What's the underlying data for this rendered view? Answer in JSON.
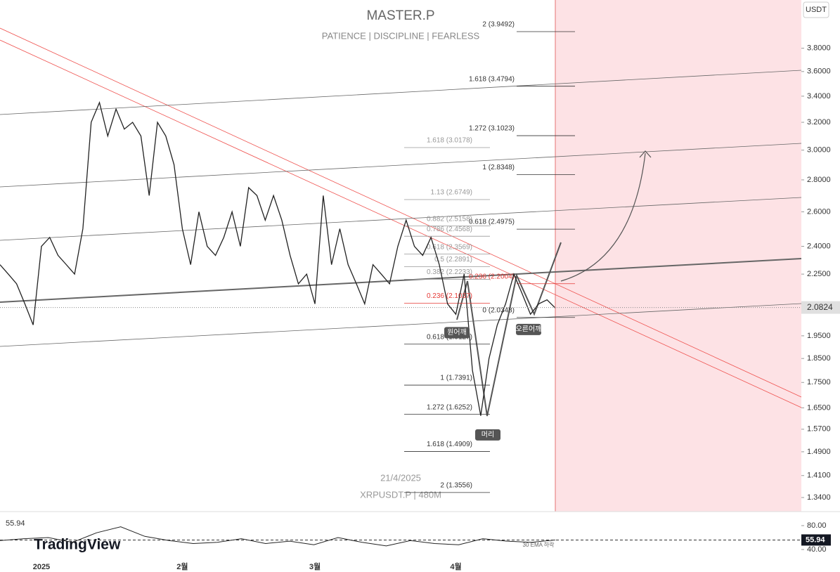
{
  "chart_data": [
    {
      "type": "line",
      "title": "MASTER.P",
      "subtitle": "PATIENCE | DISCIPLINE | FEARLESS",
      "currency": "USDT",
      "log_scale": true,
      "categories": [
        null,
        null,
        null,
        null,
        null,
        "2025",
        null,
        null,
        null,
        null,
        null,
        null,
        null,
        null,
        null,
        null,
        null,
        null,
        null,
        null,
        null,
        null,
        "2월",
        null,
        null,
        null,
        null,
        null,
        null,
        null,
        null,
        null,
        null,
        null,
        null,
        null,
        null,
        null,
        "3월",
        null,
        null,
        null,
        null,
        null,
        null,
        null,
        null,
        null,
        null,
        null,
        null,
        null,
        null,
        null,
        null,
        "4월",
        null,
        null,
        null,
        null,
        null,
        null,
        null,
        null,
        null,
        null,
        null,
        null
      ],
      "series": [
        {
          "name": "XRPUSDT.P",
          "color": "#222222",
          "values": [
            2.3,
            2.25,
            2.2,
            2.1,
            2.0,
            2.4,
            2.45,
            2.35,
            2.3,
            2.25,
            2.5,
            3.2,
            3.35,
            3.1,
            3.3,
            3.15,
            3.2,
            3.1,
            2.7,
            3.2,
            3.1,
            2.9,
            2.5,
            2.3,
            2.6,
            2.4,
            2.35,
            2.45,
            2.6,
            2.4,
            2.75,
            2.7,
            2.55,
            2.7,
            2.55,
            2.35,
            2.2,
            2.25,
            2.1,
            2.7,
            2.3,
            2.5,
            2.3,
            2.2,
            2.1,
            2.3,
            2.25,
            2.2,
            2.4,
            2.55,
            2.4,
            2.35,
            2.45,
            2.3,
            2.1,
            2.05,
            2.25,
            1.8,
            1.62,
            1.85,
            2.0,
            2.1,
            2.25,
            2.15,
            2.05,
            2.1,
            2.12,
            2.08
          ]
        }
      ],
      "last_price": 2.0824,
      "ylim": [
        1.297,
        4.25
      ],
      "yticks": [
        {
          "value": 1.34,
          "label": "1.3400"
        },
        {
          "value": 1.41,
          "label": "1.4100"
        },
        {
          "value": 1.49,
          "label": "1.4900"
        },
        {
          "value": 1.57,
          "label": "1.5700"
        },
        {
          "value": 1.65,
          "label": "1.6500"
        },
        {
          "value": 1.75,
          "label": "1.7500"
        },
        {
          "value": 1.85,
          "label": "1.8500"
        },
        {
          "value": 1.95,
          "label": "1.9500"
        },
        {
          "value": 2.25,
          "label": "2.2500"
        },
        {
          "value": 2.4,
          "label": "2.4000"
        },
        {
          "value": 2.6,
          "label": "2.6000"
        },
        {
          "value": 2.8,
          "label": "2.8000"
        },
        {
          "value": 3.0,
          "label": "3.0000"
        },
        {
          "value": 3.2,
          "label": "3.2000"
        },
        {
          "value": 3.4,
          "label": "3.4000"
        },
        {
          "value": 3.6,
          "label": "3.6000"
        },
        {
          "value": 3.8,
          "label": "3.8000"
        }
      ],
      "fib_right": [
        {
          "text": "2 (3.9492)",
          "value": 3.9492
        },
        {
          "text": "1.618 (3.4794)",
          "value": 3.4794
        },
        {
          "text": "1.272 (3.1023)",
          "value": 3.1023
        },
        {
          "text": "1 (2.8348)",
          "value": 2.8348
        },
        {
          "text": "0.618 (2.4975)",
          "value": 2.4975
        },
        {
          "text": "0.236 (2.2004)",
          "value": 2.2004,
          "color": "#e53935"
        },
        {
          "text": "0 (2.0348)",
          "value": 2.0348
        }
      ],
      "fib_left": [
        {
          "text": "1.618 (3.0178)",
          "value": 3.0178,
          "color": "#999999"
        },
        {
          "text": "1.13 (2.6749)",
          "value": 2.6749,
          "color": "#999999"
        },
        {
          "text": "0.882 (2.5158)",
          "value": 2.5158,
          "color": "#999999"
        },
        {
          "text": "0.786 (2.4568)",
          "value": 2.4568,
          "color": "#999999"
        },
        {
          "text": "0.618 (2.3569)",
          "value": 2.3569,
          "color": "#999999"
        },
        {
          "text": "0.5 (2.2891)",
          "value": 2.2891,
          "color": "#999999"
        },
        {
          "text": "0.382 (2.2233)",
          "value": 2.2233,
          "color": "#999999"
        },
        {
          "text": "0.236 (2.1037)",
          "value": 2.1037,
          "color": "#e53935"
        },
        {
          "text": "0.618 (1.9127)",
          "value": 1.9127
        },
        {
          "text": "1 (1.7391)",
          "value": 1.7391
        },
        {
          "text": "1.272 (1.6252)",
          "value": 1.6252
        },
        {
          "text": "1.618 (1.4909)",
          "value": 1.4909
        },
        {
          "text": "2 (1.3556)",
          "value": 1.3556
        }
      ],
      "pattern_labels": [
        "원어깨",
        "머리",
        "오른어깨"
      ],
      "date_text": "21/4/2025",
      "symbol_text": "XRPUSDT.P | 480M",
      "brand": "TradingView"
    },
    {
      "type": "line",
      "title": "55.94",
      "note": "30 EMA 하락",
      "color": "#222222",
      "values": [
        55,
        58,
        60,
        52,
        68,
        78,
        62,
        55,
        50,
        52,
        58,
        50,
        54,
        48,
        60,
        52,
        46,
        55,
        50,
        48,
        58,
        54,
        52,
        55.94
      ],
      "ylim": [
        24.7,
        103.5
      ],
      "yticks": [
        {
          "value": 80,
          "label": "80.00"
        },
        {
          "value": 40,
          "label": "40.00"
        }
      ]
    }
  ]
}
